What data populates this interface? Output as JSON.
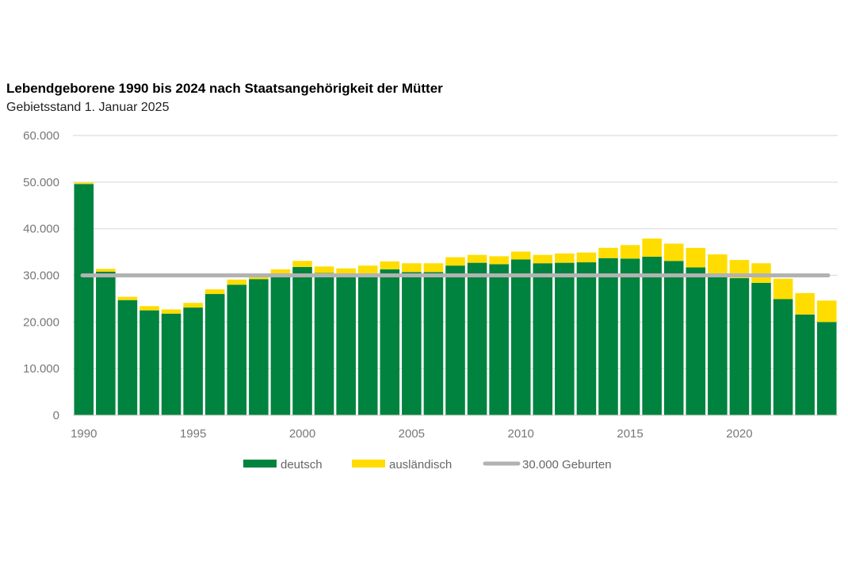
{
  "chart_data": {
    "type": "bar",
    "stacked": true,
    "title": "Lebendgeborene 1990 bis 2024 nach Staatsangehörigkeit der Mütter",
    "subtitle": "Gebietsstand 1. Januar 2025",
    "xlabel": "",
    "ylabel": "",
    "ylim": [
      0,
      60000
    ],
    "yticks": [
      "0",
      "10.000",
      "20.000",
      "30.000",
      "40.000",
      "50.000",
      "60.000"
    ],
    "ytick_values": [
      0,
      10000,
      20000,
      30000,
      40000,
      50000,
      60000
    ],
    "xticks": [
      "1990",
      "1995",
      "2000",
      "2005",
      "2010",
      "2015",
      "2020"
    ],
    "grid": true,
    "legend_position": "bottom",
    "categories": [
      1990,
      1991,
      1992,
      1993,
      1994,
      1995,
      1996,
      1997,
      1998,
      1999,
      2000,
      2001,
      2002,
      2003,
      2004,
      2005,
      2006,
      2007,
      2008,
      2009,
      2010,
      2011,
      2012,
      2013,
      2014,
      2015,
      2016,
      2017,
      2018,
      2019,
      2020,
      2021,
      2022,
      2023,
      2024
    ],
    "series": [
      {
        "name": "deutsch",
        "color": "#00833E",
        "values": [
          49600,
          30800,
          24700,
          22500,
          21800,
          23100,
          26000,
          28000,
          29200,
          30100,
          31800,
          30500,
          29900,
          30300,
          31300,
          30700,
          30700,
          32100,
          32700,
          32400,
          33400,
          32600,
          32700,
          32800,
          33700,
          33600,
          34000,
          33100,
          31700,
          30100,
          29400,
          28400,
          24900,
          21600,
          20000
        ]
      },
      {
        "name": "ausländisch",
        "color": "#FFDD00",
        "values": [
          300,
          600,
          700,
          900,
          900,
          1000,
          1000,
          1100,
          600,
          1200,
          1300,
          1400,
          1600,
          1800,
          1700,
          1900,
          1900,
          1800,
          1700,
          1700,
          1700,
          1800,
          2000,
          2100,
          2200,
          2900,
          3900,
          3700,
          4200,
          4400,
          3900,
          4200,
          4400,
          4600,
          4600
        ]
      }
    ],
    "reference_line": {
      "name": "30.000 Geburten",
      "value": 30000,
      "color": "#B2B2B2"
    }
  }
}
